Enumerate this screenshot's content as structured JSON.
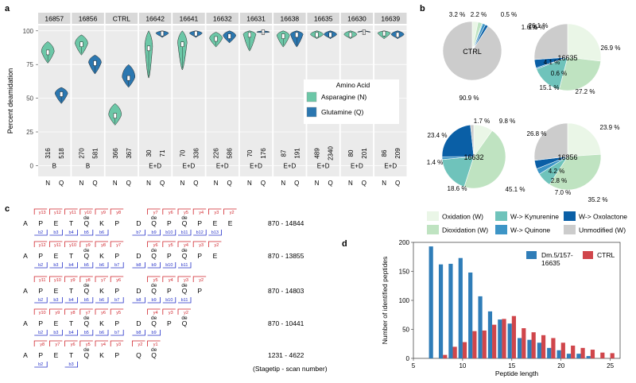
{
  "panel_labels": {
    "a": "a",
    "b": "b",
    "c": "c",
    "d": "d"
  },
  "colors": {
    "asparagine": "#6cc7a7",
    "glutamine": "#2b77b0",
    "facet_bg": "#ebebeb",
    "strip_bg": "#d9d9d9",
    "ox_w": "#eaf6e7",
    "diox_w": "#bfe3c1",
    "kyn": "#6fc3bb",
    "quin": "#3d95c6",
    "oxolac": "#0a5fa6",
    "unmod": "#cccccc",
    "red_bracket": "#d0242b",
    "blue_bracket": "#2430c8",
    "dm_bar": "#2f7db8",
    "ctrl_bar": "#d0464b"
  },
  "chart_data": [
    {
      "id": "panel-a",
      "type": "violin",
      "ylabel": "Percent deamidation",
      "ylim": [
        0,
        100
      ],
      "yticks": [
        0,
        25,
        50,
        75,
        100
      ],
      "legend": {
        "title": "Amino Acid",
        "entries": [
          "Asparagine (N)",
          "Glutamine (Q)"
        ],
        "placement": "center-right"
      },
      "xtick_labels": [
        "N",
        "Q"
      ],
      "facets": [
        {
          "name": "16857",
          "group": "B",
          "n_count": "316",
          "q_count": "518",
          "n_median": 84,
          "q_median": 53,
          "n_spread": [
            76,
            92
          ],
          "q_spread": [
            46,
            58
          ]
        },
        {
          "name": "16856",
          "group": "B",
          "n_count": "270",
          "q_count": "581",
          "n_median": 90,
          "q_median": 76,
          "n_spread": [
            82,
            97
          ],
          "q_spread": [
            68,
            82
          ]
        },
        {
          "name": "CTRL",
          "group": "",
          "n_count": "366",
          "q_count": "367",
          "n_median": 37,
          "q_median": 65,
          "n_spread": [
            30,
            46
          ],
          "q_spread": [
            58,
            75
          ]
        },
        {
          "name": "16642",
          "group": "E+D",
          "n_count": "30",
          "q_count": "71",
          "n_median": 87,
          "q_median": 98,
          "n_spread": [
            65,
            100
          ],
          "q_spread": [
            95,
            100
          ]
        },
        {
          "name": "16641",
          "group": "E+D",
          "n_count": "70",
          "q_count": "336",
          "n_median": 90,
          "q_median": 98,
          "n_spread": [
            71,
            100
          ],
          "q_spread": [
            95,
            100
          ]
        },
        {
          "name": "16632",
          "group": "E+D",
          "n_count": "226",
          "q_count": "586",
          "n_median": 94,
          "q_median": 96,
          "n_spread": [
            88,
            99
          ],
          "q_spread": [
            91,
            100
          ]
        },
        {
          "name": "16631",
          "group": "E+D",
          "n_count": "70",
          "q_count": "176",
          "n_median": 97,
          "q_median": 99,
          "n_spread": [
            85,
            100
          ],
          "q_spread": [
            98,
            100
          ]
        },
        {
          "name": "16638",
          "group": "E+D",
          "n_count": "87",
          "q_count": "191",
          "n_median": 96,
          "q_median": 97,
          "n_spread": [
            88,
            100
          ],
          "q_spread": [
            88,
            100
          ]
        },
        {
          "name": "16635",
          "group": "E+D",
          "n_count": "489",
          "q_count": "2340",
          "n_median": 97,
          "q_median": 97,
          "n_spread": [
            94,
            100
          ],
          "q_spread": [
            94,
            100
          ]
        },
        {
          "name": "16630",
          "group": "E+D",
          "n_count": "80",
          "q_count": "201",
          "n_median": 97,
          "q_median": 99,
          "n_spread": [
            94,
            100
          ],
          "q_spread": [
            99,
            100
          ]
        },
        {
          "name": "16639",
          "group": "E+D",
          "n_count": "86",
          "q_count": "209",
          "n_median": 98,
          "q_median": 97,
          "n_spread": [
            94,
            100
          ],
          "q_spread": [
            94,
            100
          ]
        }
      ]
    },
    {
      "id": "panel-b",
      "type": "pie",
      "categories": [
        "Oxidation (W)",
        "Dioxidation (W)",
        "W-> Kynurenine",
        "W-> Quinone",
        "W-> Oxolactone",
        "Unmodified (W)"
      ],
      "pies": [
        {
          "name": "CTRL",
          "values": [
            3.2,
            2.2,
            0.5,
            1.6,
            1.6,
            90.9
          ],
          "labels": [
            "3.2 %",
            "2.2 %",
            "0.5 %",
            "1.6 %",
            "1.6 %",
            "90.9 %"
          ]
        },
        {
          "name": "16635",
          "values": [
            26.9,
            27.2,
            15.1,
            0.6,
            4.1,
            26.1
          ],
          "labels": [
            "26.9 %",
            "27.2 %",
            "15.1 %",
            "0.6 %",
            "4.1 %",
            "26.1 %"
          ]
        },
        {
          "name": "16632",
          "values": [
            9.8,
            45.1,
            18.6,
            1.4,
            23.4,
            1.7
          ],
          "labels": [
            "9.8 %",
            "45.1 %",
            "18.6 %",
            "1.4 %",
            "23.4 %",
            "1.7 %"
          ]
        },
        {
          "name": "16856",
          "values": [
            23.9,
            35.2,
            7.0,
            2.8,
            4.2,
            26.8
          ],
          "labels": [
            "23.9 %",
            "35.2 %",
            "7.0 %",
            "2.8 %",
            "4.2 %",
            "26.8 %"
          ]
        }
      ]
    },
    {
      "id": "panel-d",
      "type": "bar",
      "title": "",
      "xlabel": "Peptide length",
      "ylabel": "Number of identified peptides",
      "xlim": [
        5,
        26
      ],
      "ylim": [
        0,
        200
      ],
      "xticks": [
        5,
        10,
        15,
        20,
        25
      ],
      "yticks": [
        0,
        50,
        100,
        150,
        200
      ],
      "legend_placement": "top-right",
      "x": [
        7,
        8,
        9,
        10,
        11,
        12,
        13,
        14,
        15,
        16,
        17,
        18,
        19,
        20,
        21,
        22,
        23,
        24,
        25
      ],
      "series": [
        {
          "name": "Dm.5/157-16635",
          "values": [
            193,
            162,
            163,
            173,
            148,
            107,
            81,
            67,
            60,
            35,
            32,
            27,
            18,
            14,
            8,
            8,
            4,
            0,
            0
          ]
        },
        {
          "name": "CTRL",
          "values": [
            0,
            6,
            20,
            28,
            47,
            48,
            58,
            68,
            73,
            52,
            45,
            40,
            35,
            27,
            22,
            18,
            15,
            10,
            9
          ]
        }
      ]
    }
  ],
  "panel_b_legend": [
    "Oxidation (W)",
    "W-> Kynurenine",
    "W-> Oxolactone",
    "Dioxidation (W)",
    "W-> Quinone",
    "Unmodified (W)"
  ],
  "panel_c": {
    "caption": "(Stagetip - scan number)",
    "rows": [
      {
        "residues": [
          "A",
          "P",
          "E",
          "T",
          "Q",
          "K",
          "P",
          "D",
          "Q",
          "P",
          "Q",
          "P",
          "E",
          "E"
        ],
        "de": [
          "",
          "",
          "",
          "",
          "de",
          "",
          "",
          "",
          "de",
          "",
          "de",
          "",
          "",
          ""
        ],
        "y": [
          "",
          "y13",
          "y12",
          "y11",
          "y10",
          "y9",
          "y8",
          "",
          "y7",
          "y6",
          "y5",
          "y4",
          "y3",
          "y2"
        ],
        "b": [
          "",
          "b2",
          "b3",
          "b4",
          "b5",
          "b6",
          "",
          "b7",
          "b9",
          "b10",
          "b11",
          "b12",
          "b13",
          ""
        ],
        "scan": "870 - 14844"
      },
      {
        "residues": [
          "A",
          "P",
          "E",
          "T",
          "Q",
          "K",
          "P",
          "D",
          "Q",
          "P",
          "Q",
          "P",
          "E"
        ],
        "de": [
          "",
          "",
          "",
          "",
          "de",
          "",
          "",
          "",
          "de",
          "",
          "de",
          "",
          ""
        ],
        "y": [
          "",
          "y12",
          "y11",
          "y10",
          "y9",
          "y8",
          "y7",
          "",
          "y6",
          "y5",
          "y4",
          "y3",
          "y2"
        ],
        "b": [
          "",
          "b2",
          "b3",
          "b4",
          "b5",
          "b6",
          "b7",
          "b8",
          "b9",
          "b10",
          "b11",
          "",
          ""
        ],
        "scan": "870 - 13855"
      },
      {
        "residues": [
          "A",
          "P",
          "E",
          "T",
          "Q",
          "K",
          "P",
          "D",
          "Q",
          "P",
          "Q",
          "P"
        ],
        "de": [
          "",
          "",
          "",
          "",
          "de",
          "",
          "",
          "",
          "de",
          "",
          "de",
          ""
        ],
        "y": [
          "",
          "y11",
          "y10",
          "y9",
          "y8",
          "y7",
          "y6",
          "",
          "y5",
          "y4",
          "y3",
          "y2"
        ],
        "b": [
          "",
          "b2",
          "b3",
          "b4",
          "b5",
          "b6",
          "b7",
          "b8",
          "b9",
          "b10",
          "b11",
          ""
        ],
        "scan": "870 - 14803"
      },
      {
        "residues": [
          "A",
          "P",
          "E",
          "T",
          "Q",
          "K",
          "P",
          "D",
          "Q",
          "P",
          "Q"
        ],
        "de": [
          "",
          "",
          "",
          "",
          "de",
          "",
          "",
          "",
          "de",
          "",
          "de"
        ],
        "y": [
          "",
          "y10",
          "y9",
          "y8",
          "y7",
          "y6",
          "y5",
          "",
          "y4",
          "y3",
          "y2"
        ],
        "b": [
          "",
          "b2",
          "b3",
          "b4",
          "b5",
          "b6",
          "b7",
          "b8",
          "b9",
          "",
          ""
        ],
        "scan": "870 - 10441"
      },
      {
        "residues": [
          "A",
          "P",
          "E",
          "T",
          "Q",
          "K",
          "P",
          "Q",
          "Q"
        ],
        "de": [
          "",
          "",
          "",
          "",
          "de",
          "",
          "",
          "",
          "de"
        ],
        "y": [
          "",
          "y8",
          "y7",
          "y6",
          "y5",
          "y4",
          "y3",
          "y2",
          "y1"
        ],
        "b": [
          "",
          "b2",
          "",
          "b3",
          "",
          "",
          "",
          "",
          ""
        ],
        "scan": "1231 - 4622"
      }
    ]
  }
}
